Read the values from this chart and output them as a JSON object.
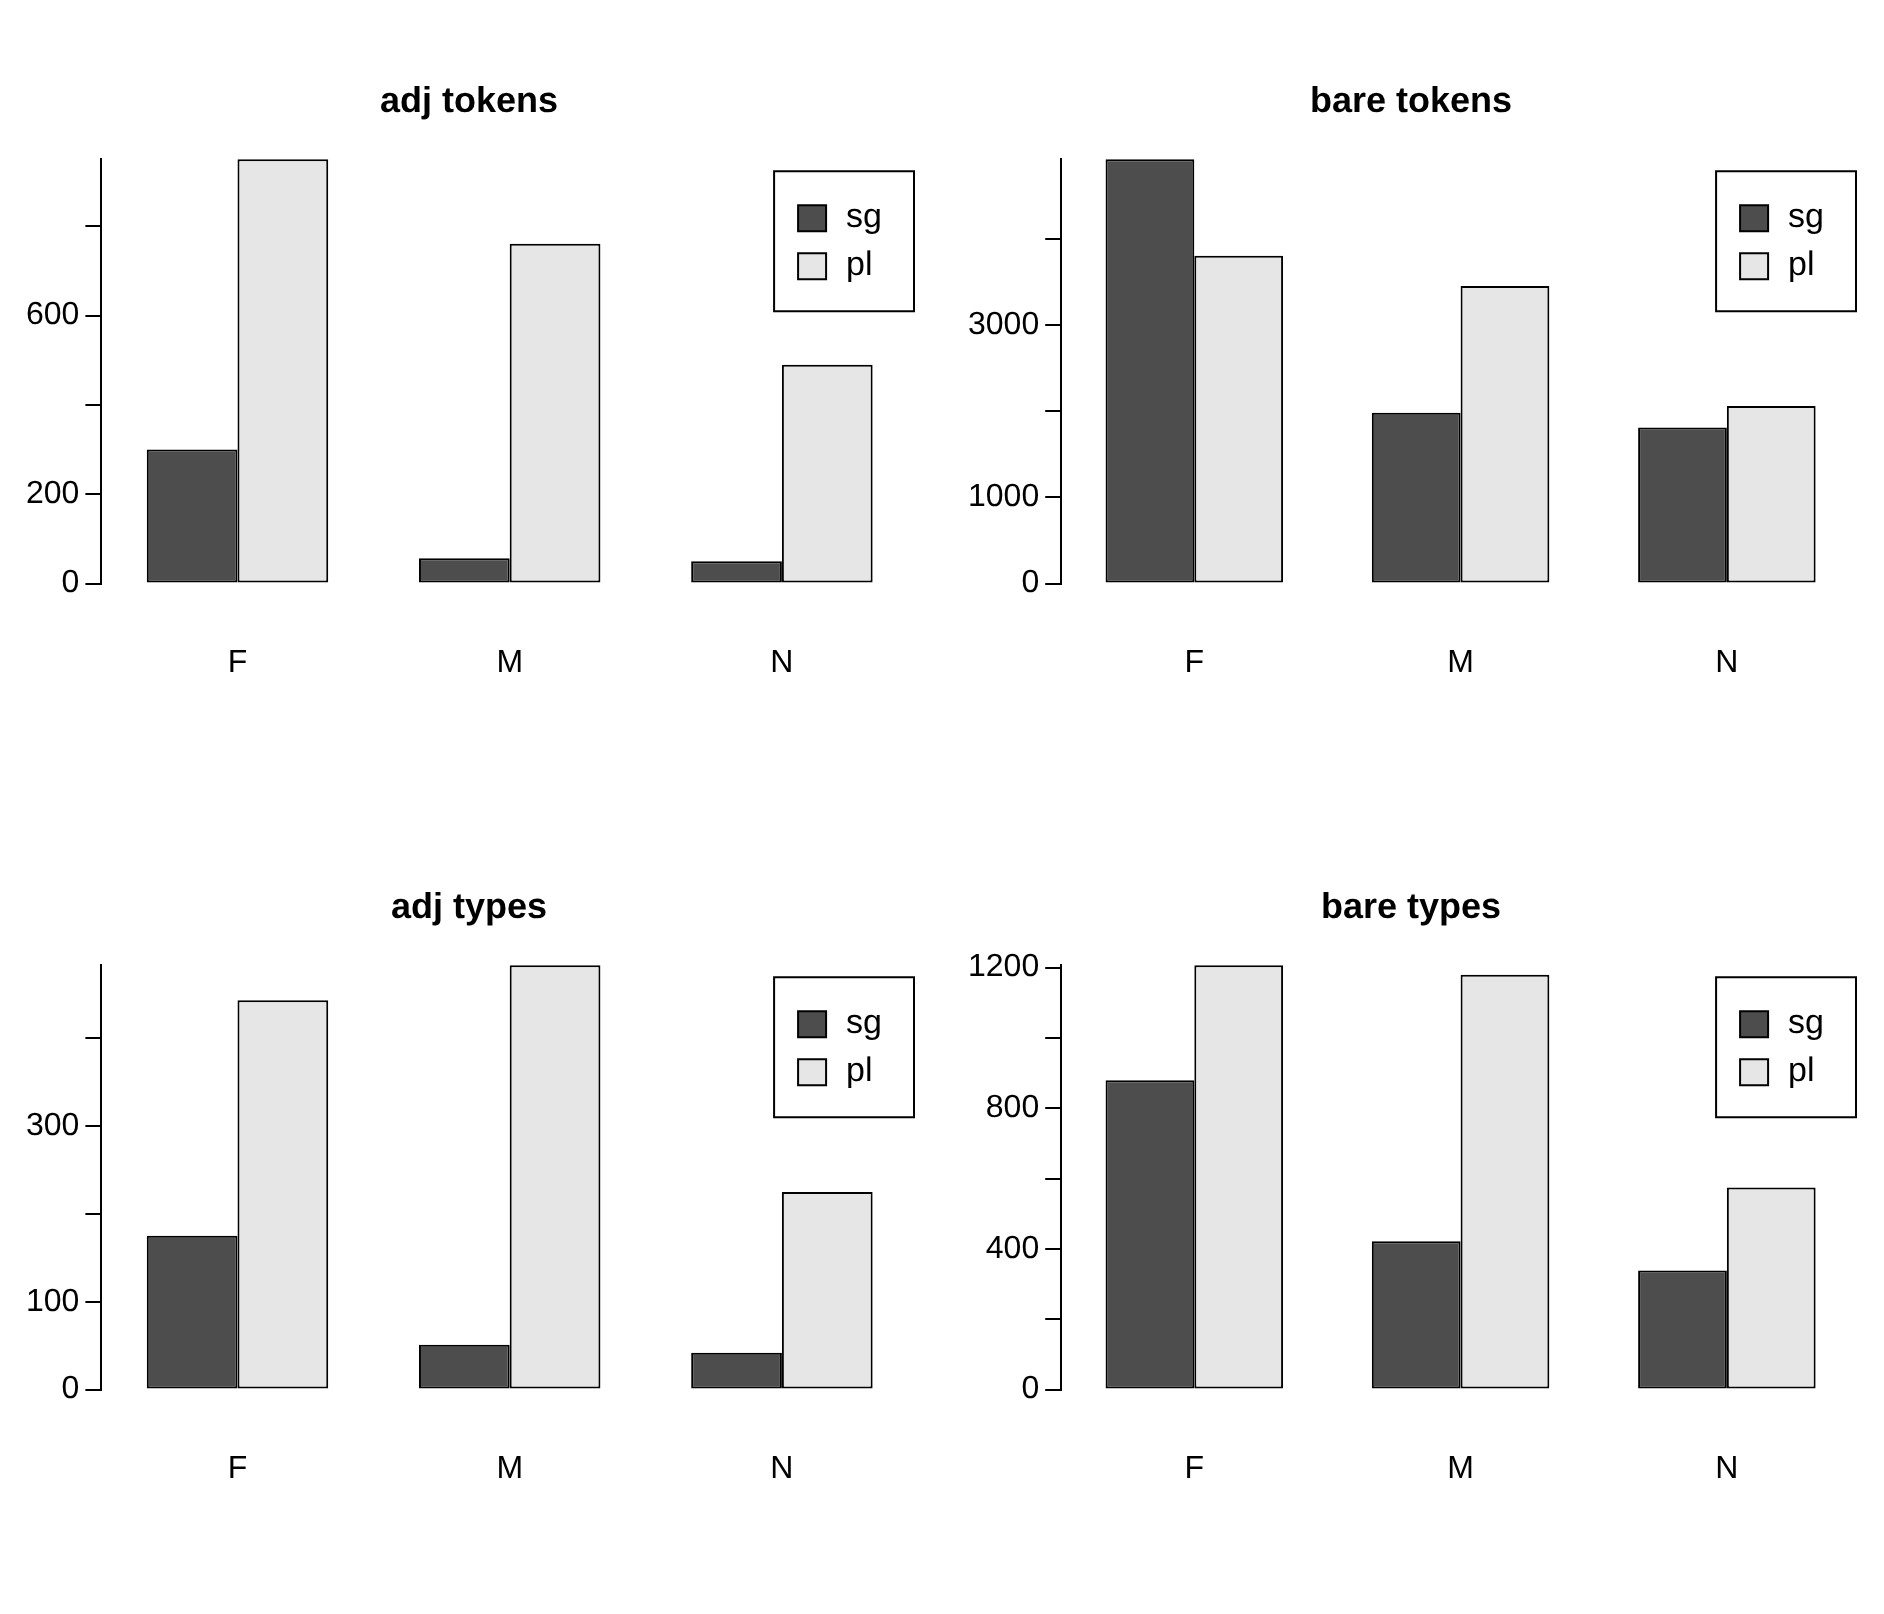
{
  "chart_data": [
    {
      "type": "bar",
      "title": "adj tokens",
      "categories": [
        "F",
        "M",
        "N"
      ],
      "legend": "top right",
      "grid": false,
      "ylim": [
        0,
        950
      ],
      "yticks": [
        0,
        200,
        {
          "value": 400,
          "label": null
        },
        600,
        {
          "value": 800,
          "label": null
        }
      ],
      "series": [
        {
          "name": "sg",
          "color": "#4d4d4d",
          "values": [
            300,
            57,
            50
          ]
        },
        {
          "name": "pl",
          "color": "#e6e6e6",
          "values": [
            950,
            761,
            490
          ]
        }
      ]
    },
    {
      "type": "bar",
      "title": "bare tokens",
      "categories": [
        "F",
        "M",
        "N"
      ],
      "legend": "top right",
      "grid": false,
      "ylim": [
        0,
        4920
      ],
      "yticks": [
        0,
        1000,
        {
          "value": 2000,
          "label": null
        },
        3000,
        {
          "value": 4000,
          "label": null
        }
      ],
      "series": [
        {
          "name": "sg",
          "color": "#4d4d4d",
          "values": [
            4920,
            1980,
            1810
          ]
        },
        {
          "name": "pl",
          "color": "#e6e6e6",
          "values": [
            3800,
            3450,
            2060
          ]
        }
      ]
    },
    {
      "type": "bar",
      "title": "adj types",
      "categories": [
        "F",
        "M",
        "N"
      ],
      "legend": "top right",
      "grid": false,
      "ylim": [
        0,
        483
      ],
      "yticks": [
        0,
        100,
        {
          "value": 200,
          "label": null
        },
        300,
        {
          "value": 400,
          "label": null
        }
      ],
      "series": [
        {
          "name": "sg",
          "color": "#4d4d4d",
          "values": [
            175,
            51,
            42
          ]
        },
        {
          "name": "pl",
          "color": "#e6e6e6",
          "values": [
            443,
            483,
            225
          ]
        }
      ]
    },
    {
      "type": "bar",
      "title": "bare types",
      "categories": [
        "F",
        "M",
        "N"
      ],
      "legend": "top right",
      "grid": false,
      "ylim": [
        0,
        1207
      ],
      "yticks": [
        0,
        {
          "value": 200,
          "label": null
        },
        400,
        {
          "value": 600,
          "label": null
        },
        800,
        {
          "value": 1000,
          "label": null
        },
        1200
      ],
      "series": [
        {
          "name": "sg",
          "color": "#4d4d4d",
          "values": [
            880,
            422,
            339
          ]
        },
        {
          "name": "pl",
          "color": "#e6e6e6",
          "values": [
            1207,
            1180,
            575
          ]
        }
      ]
    }
  ]
}
